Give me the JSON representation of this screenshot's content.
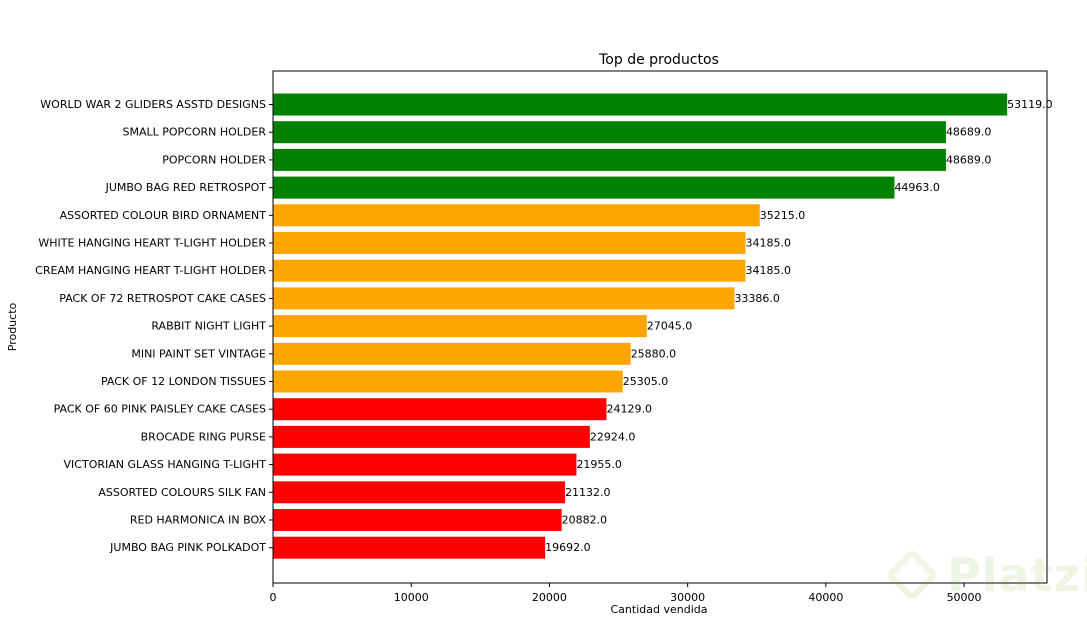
{
  "chart_data": {
    "type": "bar",
    "orientation": "horizontal",
    "title": "Top de productos",
    "xlabel": "Cantidad vendida",
    "ylabel": "Producto",
    "xlim": [
      0,
      56000
    ],
    "xticks": [
      0,
      10000,
      20000,
      30000,
      40000,
      50000
    ],
    "categories": [
      "WORLD WAR 2 GLIDERS ASSTD DESIGNS",
      "SMALL POPCORN HOLDER",
      "POPCORN HOLDER",
      "JUMBO BAG RED RETROSPOT",
      "ASSORTED COLOUR BIRD ORNAMENT",
      "WHITE HANGING HEART T-LIGHT HOLDER",
      "CREAM HANGING HEART T-LIGHT HOLDER",
      "PACK OF 72 RETROSPOT CAKE CASES",
      "RABBIT NIGHT LIGHT",
      "MINI PAINT SET VINTAGE ",
      "PACK OF 12 LONDON TISSUES ",
      "PACK OF 60 PINK PAISLEY CAKE CASES",
      "BROCADE RING PURSE ",
      "VICTORIAN GLASS HANGING T-LIGHT",
      "ASSORTED COLOURS SILK FAN",
      "RED  HARMONICA IN BOX ",
      "JUMBO BAG PINK POLKADOT"
    ],
    "values": [
      53119.0,
      48689.0,
      48689.0,
      44963.0,
      35215.0,
      34185.0,
      34185.0,
      33386.0,
      27045.0,
      25880.0,
      25305.0,
      24129.0,
      22924.0,
      21955.0,
      21132.0,
      20882.0,
      19692.0
    ],
    "value_labels": [
      "53119.0",
      "48689.0",
      "48689.0",
      "44963.0",
      "35215.0",
      "34185.0",
      "34185.0",
      "33386.0",
      "27045.0",
      "25880.0",
      "25305.0",
      "24129.0",
      "22924.0",
      "21955.0",
      "21132.0",
      "20882.0",
      "19692.0"
    ],
    "bar_colors": [
      "#008000",
      "#008000",
      "#008000",
      "#008000",
      "#ffa500",
      "#ffa500",
      "#ffa500",
      "#ffa500",
      "#ffa500",
      "#ffa500",
      "#ffa500",
      "#ff0000",
      "#ff0000",
      "#ff0000",
      "#ff0000",
      "#ff0000",
      "#ff0000"
    ],
    "grid": false,
    "legend": "none"
  },
  "watermark": {
    "text": "Platzi",
    "icon": "platzi-logo-icon",
    "color": "#6ea60f"
  }
}
